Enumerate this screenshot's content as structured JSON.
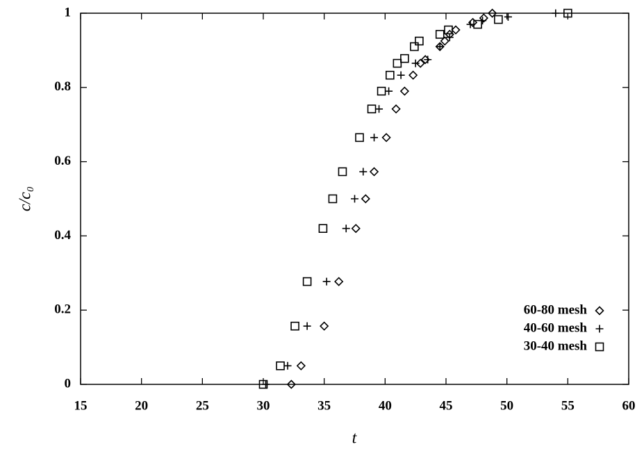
{
  "chart_data": {
    "type": "scatter",
    "xlabel": "t",
    "ylabel": "c/c₀",
    "xlim": [
      15,
      60
    ],
    "ylim": [
      0,
      1
    ],
    "xticks": [
      15,
      20,
      25,
      30,
      35,
      40,
      45,
      50,
      55,
      60
    ],
    "yticks": [
      0,
      0.2,
      0.4,
      0.6,
      0.8,
      1
    ],
    "legend": "lower right",
    "series": [
      {
        "name": "60-80 mesh",
        "color": "#000000",
        "marker": "diamond",
        "x": [
          32.3,
          33.1,
          35.0,
          36.2,
          37.6,
          38.4,
          39.1,
          40.1,
          40.9,
          41.6,
          42.3,
          42.9,
          43.3,
          44.5,
          44.9,
          45.3,
          45.8,
          47.2,
          48.1,
          48.8
        ],
        "values": [
          0,
          0.05,
          0.157,
          0.277,
          0.42,
          0.5,
          0.573,
          0.665,
          0.742,
          0.79,
          0.833,
          0.865,
          0.875,
          0.91,
          0.925,
          0.943,
          0.955,
          0.975,
          0.987,
          1.0
        ]
      },
      {
        "name": "40-60 mesh",
        "color": "#000000",
        "marker": "plus",
        "x": [
          30.2,
          32.0,
          33.6,
          35.2,
          36.8,
          37.5,
          38.2,
          39.1,
          39.5,
          40.3,
          41.3,
          42.5,
          43.5,
          44.5,
          45.3,
          47.0,
          48.0,
          50.1,
          54.0
        ],
        "values": [
          0,
          0.05,
          0.157,
          0.277,
          0.42,
          0.5,
          0.573,
          0.665,
          0.742,
          0.79,
          0.833,
          0.865,
          0.875,
          0.91,
          0.935,
          0.97,
          0.98,
          0.99,
          1.0
        ]
      },
      {
        "name": "30-40 mesh",
        "color": "#000000",
        "marker": "square",
        "x": [
          30.0,
          31.4,
          32.6,
          33.6,
          34.9,
          35.7,
          36.5,
          37.9,
          38.9,
          39.7,
          40.4,
          41.0,
          41.6,
          42.4,
          42.8,
          44.5,
          45.2,
          47.6,
          49.3,
          55.0
        ],
        "values": [
          0,
          0.05,
          0.157,
          0.277,
          0.42,
          0.5,
          0.573,
          0.665,
          0.742,
          0.79,
          0.833,
          0.865,
          0.878,
          0.91,
          0.925,
          0.943,
          0.955,
          0.97,
          0.983,
          1.0
        ]
      }
    ]
  }
}
